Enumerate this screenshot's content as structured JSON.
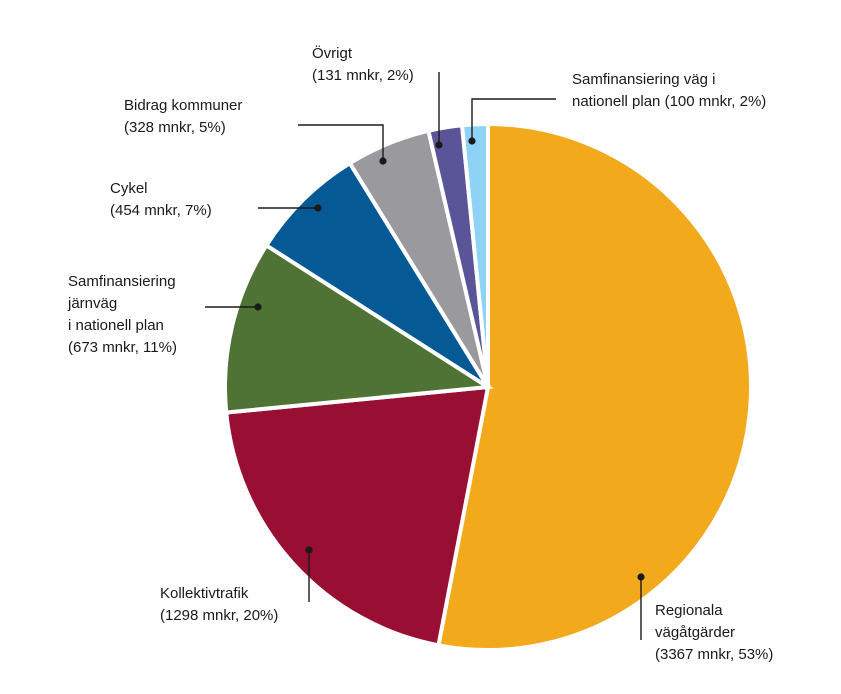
{
  "chart_data": {
    "type": "pie",
    "title": "",
    "start_angle_deg": 0,
    "direction": "clockwise",
    "slices": [
      {
        "name": "Regionala vägåtgärder",
        "value": 3367,
        "percent": 53,
        "color": "#F2A91C",
        "label_lines": [
          "Regionala",
          "vägåtgärder",
          "(3367 mnkr, 53%)"
        ]
      },
      {
        "name": "Kollektivtrafik",
        "value": 1298,
        "percent": 20,
        "color": "#990F33",
        "label_lines": [
          "Kollektivtrafik",
          "(1298 mnkr, 20%)"
        ]
      },
      {
        "name": "Samfinansiering järnväg i nationell plan",
        "value": 673,
        "percent": 11,
        "color": "#4F7335",
        "label_lines": [
          "Samfinansiering",
          "järnväg",
          "i nationell plan",
          "(673 mnkr, 11%)"
        ]
      },
      {
        "name": "Cykel",
        "value": 454,
        "percent": 7,
        "color": "#055A96",
        "label_lines": [
          "Cykel",
          "(454 mnkr, 7%)"
        ]
      },
      {
        "name": "Bidrag kommuner",
        "value": 328,
        "percent": 5,
        "color": "#9A9A9E",
        "label_lines": [
          "Bidrag kommuner",
          "(328 mnkr, 5%)"
        ]
      },
      {
        "name": "Övrigt",
        "value": 131,
        "percent": 2,
        "color": "#5A5599",
        "label_lines": [
          "Övrigt",
          "(131 mnkr, 2%)"
        ]
      },
      {
        "name": "Samfinansiering väg i nationell plan",
        "value": 100,
        "percent": 2,
        "color": "#8ED3F5",
        "label_lines": [
          "Samfinansiering väg i",
          "nationell plan (100 mnkr, 2%)"
        ]
      }
    ]
  }
}
